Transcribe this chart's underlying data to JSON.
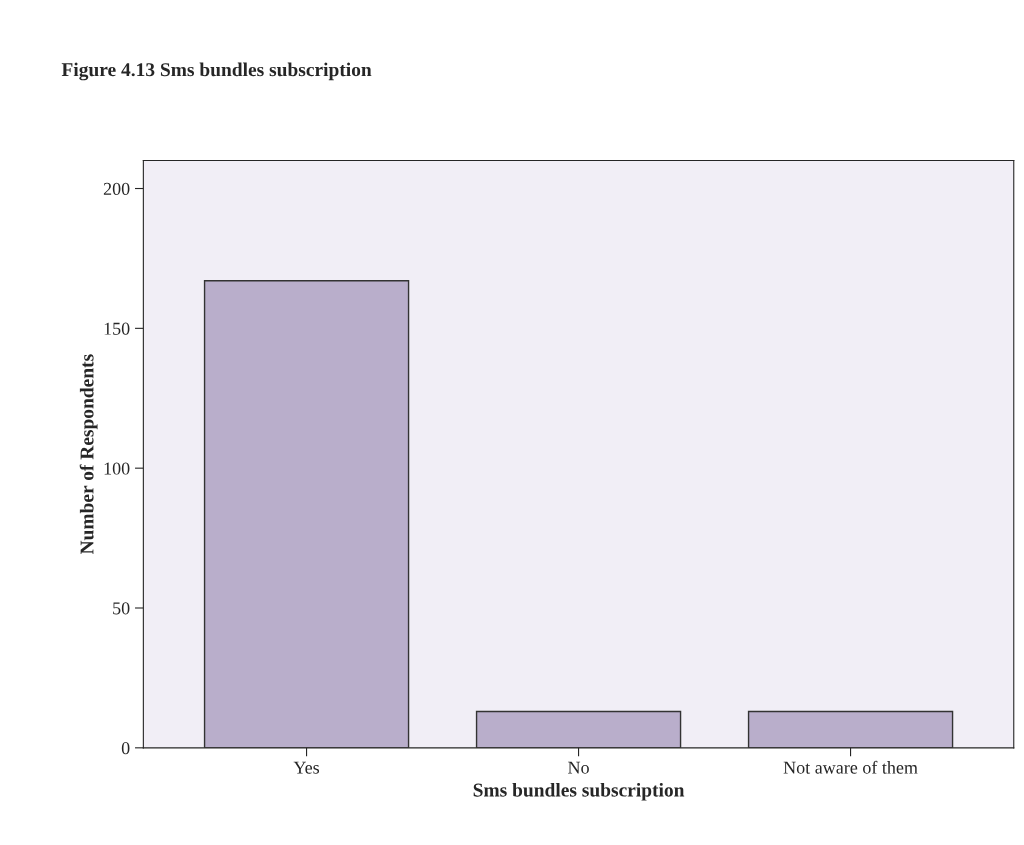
{
  "chart_data": {
    "type": "bar",
    "title": "Figure 4.13 Sms bundles subscription",
    "xlabel": "Sms bundles subscription",
    "ylabel": "Number of Respondents",
    "categories": [
      "Yes",
      "No",
      "Not aware of them"
    ],
    "values": [
      167,
      13,
      13
    ],
    "color": "#b9aecb",
    "ylim": [
      0,
      210
    ],
    "yticks": [
      0,
      50,
      100,
      150,
      200
    ],
    "grid": false
  }
}
